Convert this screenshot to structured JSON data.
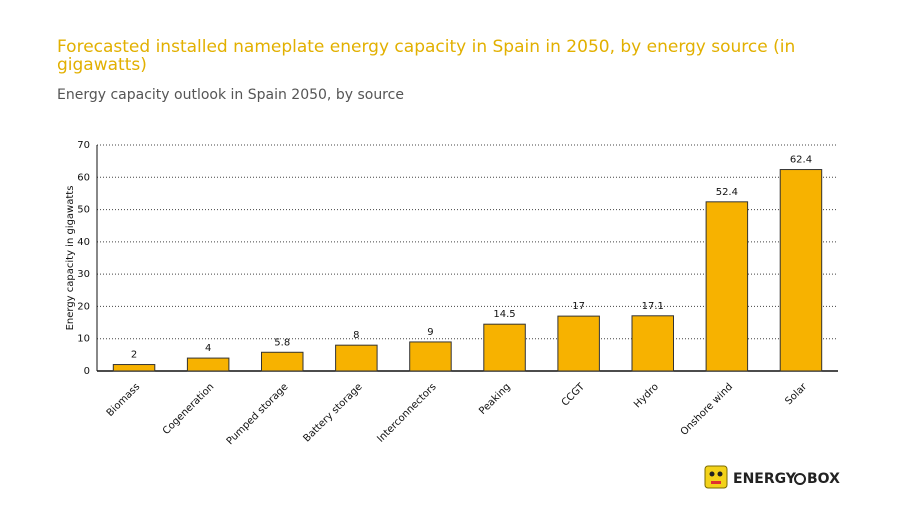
{
  "chart_data": {
    "type": "bar",
    "title": "Forecasted installed nameplate energy capacity in Spain in 2050, by energy source (in gigawatts)",
    "subtitle": "Energy capacity outlook in Spain 2050, by source",
    "y_label": "Energy capacity in gigawatts",
    "categories": [
      "Biomass",
      "Cogeneration",
      "Pumped storage",
      "Battery storage",
      "Interconnectors",
      "Peaking",
      "CCGT",
      "Hydro",
      "Onshore wind",
      "Solar"
    ],
    "values": [
      2,
      4,
      5.8,
      8,
      9,
      14.5,
      17,
      17.1,
      52.4,
      62.4
    ],
    "color": "#f7b200",
    "ylim": [
      0,
      70
    ],
    "yticks": [
      0,
      10,
      20,
      30,
      40,
      50,
      60,
      70
    ],
    "grid": true
  },
  "logo": {
    "left": "ENERGY",
    "right": "BOX"
  }
}
